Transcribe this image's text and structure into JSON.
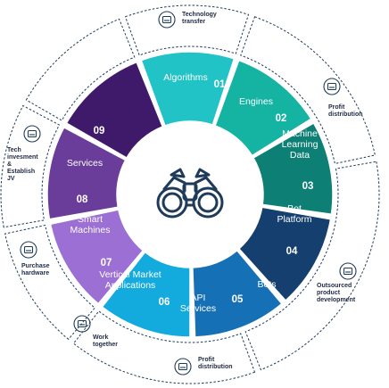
{
  "segments": [
    {
      "number": "01",
      "label": [
        "Algorithms"
      ],
      "color": "#22c3c6"
    },
    {
      "number": "02",
      "label": [
        "Engines"
      ],
      "color": "#14b3a2"
    },
    {
      "number": "03",
      "label": [
        "Machine",
        "Learning",
        "Data"
      ],
      "color": "#0e7f74"
    },
    {
      "number": "04",
      "label": [
        "Bot",
        "Platform"
      ],
      "color": "#153f6e"
    },
    {
      "number": "05",
      "label": [
        "Bots"
      ],
      "color": "#1670b6"
    },
    {
      "number": "06",
      "label": [
        "API",
        "Services"
      ],
      "color": "#13aadd"
    },
    {
      "number": "07",
      "label": [
        "Vertical Market",
        "Applications"
      ],
      "color": "#9b6fd3"
    },
    {
      "number": "08",
      "label": [
        "Smart",
        "Machines"
      ],
      "color": "#6a3d9a"
    },
    {
      "number": "09",
      "label": [
        "Services"
      ],
      "color": "#3f1a6b"
    }
  ],
  "outer": [
    {
      "label": [
        "Technology",
        "transfer"
      ],
      "icon": "gear-head-icon"
    },
    {
      "label": [
        "Profit",
        "distribution"
      ],
      "icon": "money-hand-icon"
    },
    {
      "label": [
        "Outsourced",
        "product",
        "development"
      ],
      "icon": "gear-screen-icon"
    },
    {
      "label": [
        "Profit",
        "distribution"
      ],
      "icon": "money-hand-icon"
    },
    {
      "label": [
        "Work",
        "together"
      ],
      "icon": "computers-icon"
    },
    {
      "label": [
        "Purchase",
        "hardware"
      ],
      "icon": "cart-icon"
    },
    {
      "label": [
        "Tech",
        "invesment",
        "&",
        "Establish",
        "JV"
      ],
      "icon": "handshake-icon"
    }
  ],
  "center": {
    "icon": "binoculars-icon"
  },
  "colors": {
    "dash": "#1f3b5a",
    "icon": "#1f3b5a",
    "center_bg": "#ffffff"
  }
}
